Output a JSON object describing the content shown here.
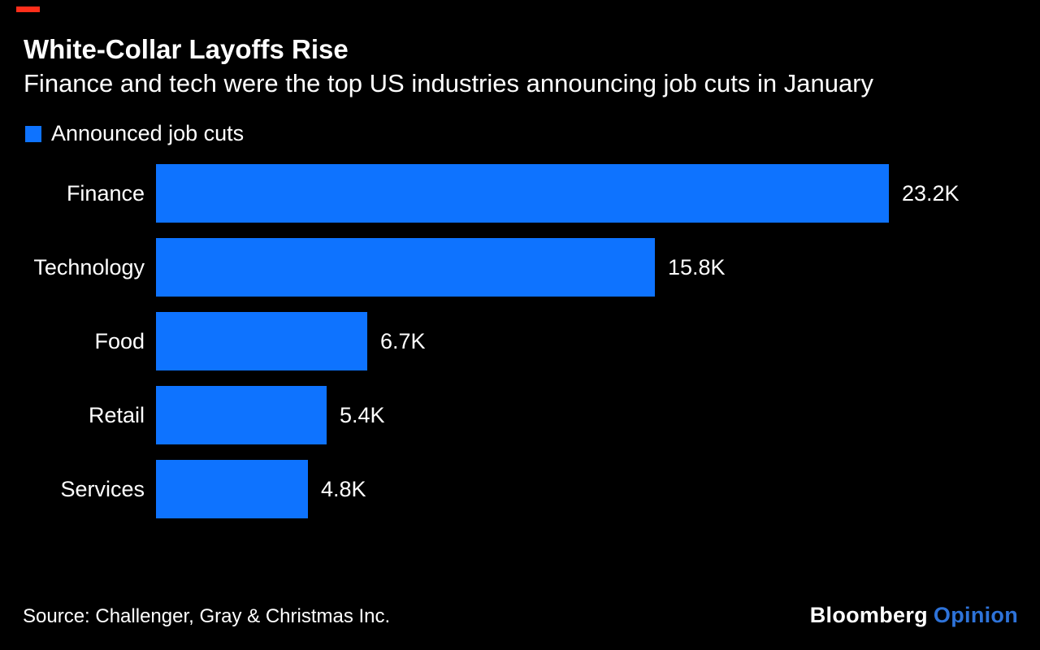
{
  "colors": {
    "background": "#000000",
    "bar_blue": "#0e73ff",
    "text_white": "#ffffff",
    "accent_red": "#ff2e1a",
    "opinion_blue": "#2e73d9"
  },
  "chart_data": {
    "type": "bar",
    "orientation": "horizontal",
    "title": "White-Collar Layoffs Rise",
    "subtitle": "Finance and tech were the top US industries announcing job cuts in January",
    "series_name": "Announced job cuts",
    "categories": [
      "Finance",
      "Technology",
      "Food",
      "Retail",
      "Services"
    ],
    "values": [
      23.2,
      15.8,
      6.7,
      5.4,
      4.8
    ],
    "value_labels": [
      "23.2K",
      "15.8K",
      "6.7K",
      "5.4K",
      "4.8K"
    ],
    "value_suffix": "K",
    "xlim": [
      0,
      23.2
    ],
    "grid": false,
    "axis_ticks": false,
    "legend_position": "top-left",
    "bar_color": "#0e73ff",
    "background": "#000000"
  },
  "footer": {
    "source": "Source: Challenger, Gray & Christmas Inc.",
    "brand": "Bloomberg",
    "brand_product": "Opinion"
  }
}
